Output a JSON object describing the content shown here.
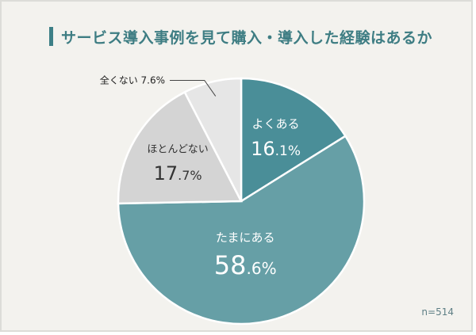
{
  "title": "サービス導入事例を見て購入・導入した経験はあるか",
  "sample_size": "n=514",
  "colors": {
    "accent": "#3d7f86",
    "background": "#f3f2ee"
  },
  "chart_data": {
    "type": "pie",
    "title": "サービス導入事例を見て購入・導入した経験はあるか",
    "slices": [
      {
        "label": "よくある",
        "value": 16.1,
        "display": "16.1%",
        "color": "#4a8e98",
        "text_color": "#ffffff"
      },
      {
        "label": "たまにある",
        "value": 58.6,
        "display": "58.6%",
        "color": "#669fa6",
        "text_color": "#ffffff"
      },
      {
        "label": "ほとんどない",
        "value": 17.7,
        "display": "17.7%",
        "color": "#d4d4d4",
        "text_color": "#333333"
      },
      {
        "label": "全くない",
        "value": 7.6,
        "display": "7.6%",
        "color": "#e6e6e6",
        "text_color": "#333333"
      }
    ],
    "start_angle_deg": 0,
    "direction": "clockwise",
    "legend": "none",
    "note": "n=514"
  }
}
